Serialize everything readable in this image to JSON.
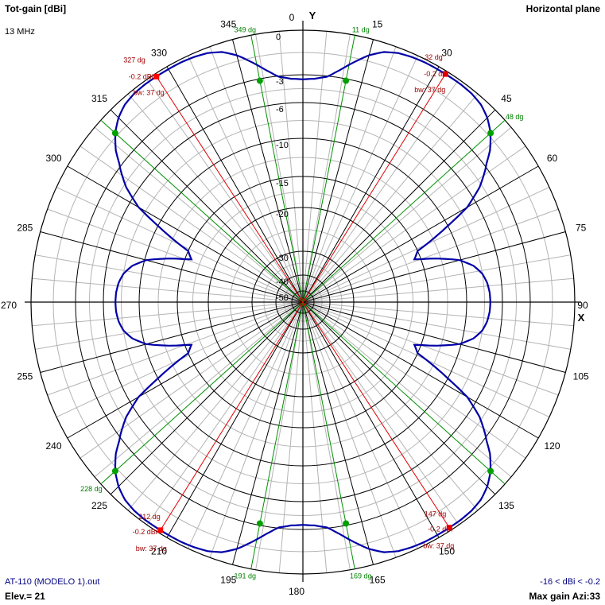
{
  "header": {
    "title": "Tot-gain [dBi]",
    "frequency": "13 MHz",
    "plane": "Horizontal plane"
  },
  "footer": {
    "filename": "AT-110 (MODELO 1).out",
    "elevation": "Elev.= 21",
    "range": "-16 < dBi < -0.2",
    "max_gain": "Max gain Azi:33"
  },
  "axes": {
    "y_letter": "Y",
    "x_letter": "X"
  },
  "colors": {
    "pattern": "#0000a8",
    "lobe_line": "#e00000",
    "marker_line": "#009000",
    "grid_dark": "#000000",
    "grid_light": "#b4b4b4"
  },
  "chart_data": {
    "type": "polar",
    "angle_labels": [
      "0",
      "15",
      "30",
      "45",
      "60",
      "75",
      "90",
      "105",
      "120",
      "135",
      "150",
      "165",
      "180",
      "195",
      "210",
      "225",
      "240",
      "255",
      "270",
      "285",
      "300",
      "315",
      "330",
      "345"
    ],
    "radial_scale": {
      "rings_db": [
        0,
        -3,
        -6,
        -10,
        -15,
        -20,
        -30,
        -40,
        -50
      ],
      "ring_labels": [
        "0",
        "-3",
        "-6",
        "-10",
        "-15",
        "-20",
        "-30",
        "-40",
        "-50"
      ]
    },
    "pattern": {
      "name": "Tot-gain",
      "azimuth_deg": [
        0,
        3,
        6,
        9,
        12,
        15,
        18,
        21,
        24,
        27,
        30,
        33,
        36,
        39,
        42,
        45,
        48,
        51,
        54,
        57,
        60,
        63,
        66,
        69,
        72,
        75,
        78,
        81,
        84,
        87,
        90
      ],
      "gain_dbi": [
        -3.5,
        -3.4,
        -3.1,
        -2.5,
        -1.8,
        -1.1,
        -0.6,
        -0.35,
        -0.25,
        -0.2,
        -0.2,
        -0.2,
        -0.2,
        -0.25,
        -0.4,
        -0.75,
        -1.3,
        -2.1,
        -3.2,
        -4.8,
        -7.1,
        -11.0,
        -15.0,
        -16.0,
        -13.0,
        -10.2,
        -8.8,
        -8.0,
        -7.6,
        -7.4,
        -7.35
      ],
      "symmetry": "mirror-quad"
    },
    "main_lobes": [
      {
        "az": 32,
        "az_label": "32 dg",
        "gain_label": "-0.2 dBi",
        "bw_label": "bw: 37 dg"
      },
      {
        "az": 147,
        "az_label": "147 dg",
        "gain_label": "-0.2 dBi",
        "bw_label": "bw: 37 dg"
      },
      {
        "az": 212,
        "az_label": "212 dg",
        "gain_label": "-0.2 dBi",
        "bw_label": "bw: 37 dg"
      },
      {
        "az": 327,
        "az_label": "327 dg",
        "gain_label": "-0.2 dBi",
        "bw_label": "bw: 37 dg"
      }
    ],
    "half_power_points": [
      {
        "az": 11,
        "gain": -3.2,
        "label": "11 dg"
      },
      {
        "az": 48,
        "gain": -1.3,
        "label": "48 dg"
      },
      {
        "az": 132,
        "gain": -1.3,
        "label": ""
      },
      {
        "az": 169,
        "gain": -3.2,
        "label": "169 dg"
      },
      {
        "az": 191,
        "gain": -3.2,
        "label": "191 dg"
      },
      {
        "az": 228,
        "gain": -1.3,
        "label": "228 dg"
      },
      {
        "az": 312,
        "gain": -1.3,
        "label": ""
      },
      {
        "az": 349,
        "gain": -3.2,
        "label": "349 dg"
      }
    ]
  }
}
